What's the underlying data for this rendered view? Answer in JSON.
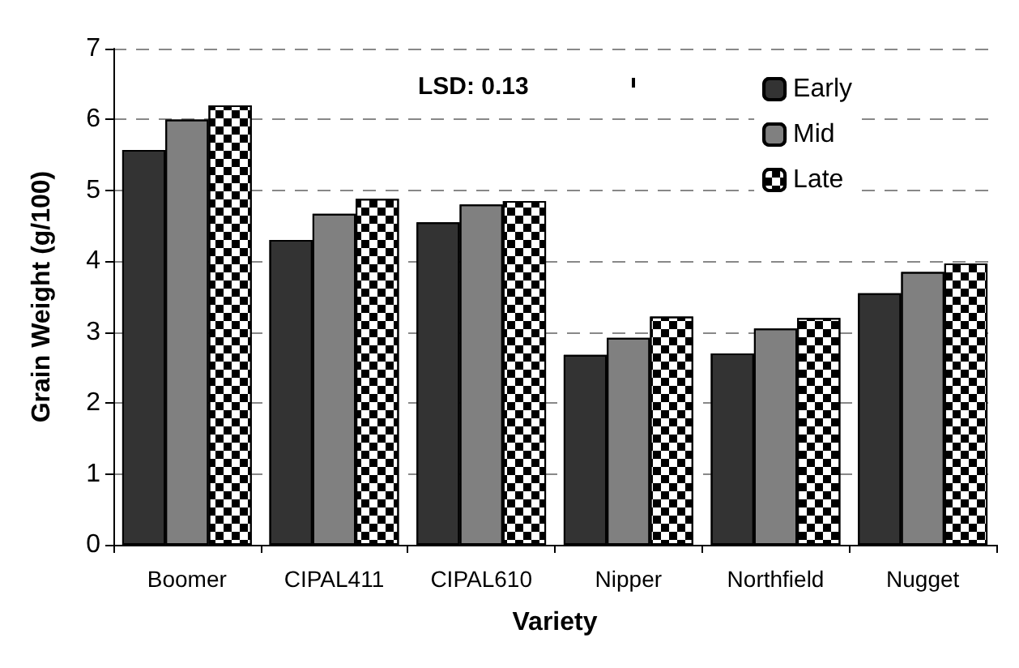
{
  "chart_data": {
    "type": "bar",
    "xlabel": "Variety",
    "ylabel": "Grain Weight (g/100)",
    "categories": [
      "Boomer",
      "CIPAL411",
      "CIPAL610",
      "Nipper",
      "Northfield",
      "Nugget"
    ],
    "series": [
      {
        "name": "Early",
        "color": "#333333",
        "values": [
          5.57,
          4.3,
          4.55,
          2.68,
          2.7,
          3.55
        ]
      },
      {
        "name": "Mid",
        "color": "#808080",
        "values": [
          6.0,
          4.67,
          4.8,
          2.92,
          3.05,
          3.85
        ]
      },
      {
        "name": "Late",
        "color": "#ffffff",
        "values": [
          6.2,
          4.88,
          4.85,
          3.22,
          3.2,
          3.97
        ]
      }
    ],
    "ylim": [
      0,
      7
    ],
    "yticks": [
      0,
      1,
      2,
      3,
      4,
      5,
      6,
      7
    ],
    "grid": "y",
    "legend": "top right",
    "annotations": [
      "LSD: 0.13"
    ]
  }
}
